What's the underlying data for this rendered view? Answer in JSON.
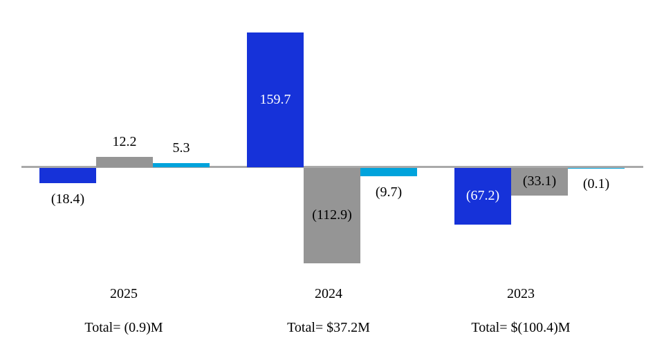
{
  "chart_data": {
    "type": "bar",
    "title": "",
    "xlabel": "",
    "ylabel": "",
    "categories": [
      "2025",
      "2024",
      "2023"
    ],
    "category_totals": [
      "Total= (0.9)M",
      "Total= $37.2M",
      "Total= $(100.4)M"
    ],
    "series": [
      {
        "name": "series-blue",
        "color": "#1632d9",
        "inside_label_color": "#ffffff",
        "values": [
          -18.4,
          159.7,
          -67.2
        ],
        "labels": [
          "(18.4)",
          "159.7",
          "(67.2)"
        ]
      },
      {
        "name": "series-gray",
        "color": "#959595",
        "inside_label_color": "#000000",
        "values": [
          12.2,
          -112.9,
          -33.1
        ],
        "labels": [
          "12.2",
          "(112.9)",
          "(33.1)"
        ]
      },
      {
        "name": "series-cyan",
        "color": "#00a3dc",
        "inside_label_color": "#000000",
        "values": [
          5.3,
          -9.7,
          -0.1
        ],
        "labels": [
          "5.3",
          "(9.7)",
          "(0.1)"
        ]
      }
    ],
    "axis": {
      "ylim": [
        -120,
        165
      ],
      "grid": false,
      "legend": "none",
      "zero_line_color": "#a9a9a9"
    },
    "label_color_outside": "#000000"
  }
}
